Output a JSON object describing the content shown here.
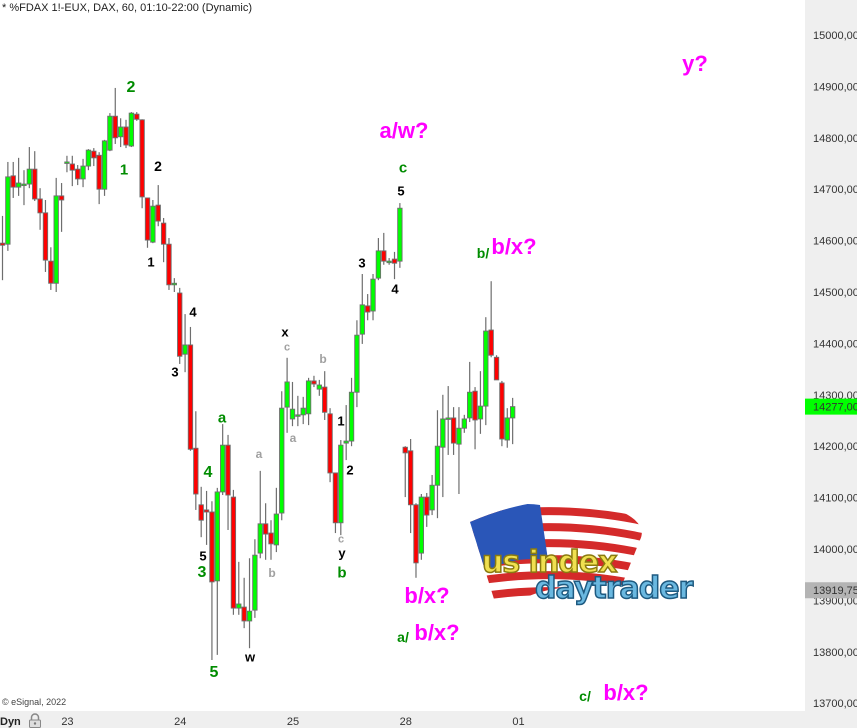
{
  "header": {
    "title": "* %FDAX 1!-EUX, DAX, 60, 01:10-22:00 (Dynamic)"
  },
  "footer": {
    "copyright": "© eSignal, 2022",
    "scale_mode": "Dyn",
    "lock_icon": "lock-icon"
  },
  "logo": {
    "text_line1": "us index",
    "text_line2": "daytrader"
  },
  "colors": {
    "up": "#00ff00",
    "down": "#ff0000",
    "outline": "#6e6e6e",
    "wave_green": "#008c00",
    "wave_black": "#000000",
    "wave_gray": "#a0a0a0",
    "scenario": "#ff00ff",
    "last_price_bg": "#00ff00",
    "marker_bg": "#b4b4b4"
  },
  "chart_data": {
    "type": "candlestick",
    "title": "* %FDAX 1!-EUX, DAX, 60, 01:10-22:00 (Dynamic)",
    "interval": "60",
    "ylim": [
      13680,
      15068
    ],
    "yticks": [
      "15000,00",
      "14900,00",
      "14800,00",
      "14700,00",
      "14600,00",
      "14500,00",
      "14400,00",
      "14300,00",
      "14200,00",
      "14100,00",
      "14000,00",
      "13900,00",
      "13800,00",
      "13700,00"
    ],
    "ytick_values": [
      15000,
      14900,
      14800,
      14700,
      14600,
      14500,
      14400,
      14300,
      14200,
      14100,
      14000,
      13900,
      13800,
      13700
    ],
    "xticks": [
      {
        "label": "23",
        "bar": 12
      },
      {
        "label": "24",
        "bar": 33
      },
      {
        "label": "25",
        "bar": 54
      },
      {
        "label": "28",
        "bar": 75
      },
      {
        "label": "01",
        "bar": 96
      }
    ],
    "last_price": {
      "value": 14277,
      "label": "14277,00"
    },
    "marker_price": {
      "value": 13919.75,
      "label": "13919,75"
    },
    "ohlc": [
      [
        14595,
        14648,
        14523,
        14591
      ],
      [
        14593,
        14753,
        14580,
        14724
      ],
      [
        14726,
        14753,
        14683,
        14704
      ],
      [
        14704,
        14761,
        14687,
        14712
      ],
      [
        14710,
        14737,
        14669,
        14710
      ],
      [
        14710,
        14782,
        14702,
        14739
      ],
      [
        14739,
        14774,
        14677,
        14681
      ],
      [
        14681,
        14702,
        14621,
        14654
      ],
      [
        14654,
        14679,
        14539,
        14562
      ],
      [
        14560,
        14587,
        14504,
        14517
      ],
      [
        14517,
        14722,
        14500,
        14687
      ],
      [
        14687,
        14712,
        14617,
        14679
      ],
      [
        14753,
        14765,
        14733,
        14753
      ],
      [
        14749,
        14765,
        14706,
        14737
      ],
      [
        14739,
        14747,
        14708,
        14720
      ],
      [
        14720,
        14759,
        14704,
        14745
      ],
      [
        14745,
        14778,
        14737,
        14776
      ],
      [
        14774,
        14780,
        14745,
        14761
      ],
      [
        14766,
        14772,
        14671,
        14700
      ],
      [
        14700,
        14796,
        14687,
        14794
      ],
      [
        14776,
        14848,
        14774,
        14842
      ],
      [
        14842,
        14897,
        14788,
        14800
      ],
      [
        14802,
        14838,
        14782,
        14821
      ],
      [
        14821,
        14835,
        14780,
        14786
      ],
      [
        14784,
        14850,
        14782,
        14848
      ],
      [
        14846,
        14850,
        14833,
        14836
      ],
      [
        14835,
        14836,
        14663,
        14685
      ],
      [
        14683,
        14683,
        14586,
        14601
      ],
      [
        14597,
        14679,
        14595,
        14667
      ],
      [
        14669,
        14708,
        14628,
        14638
      ],
      [
        14634,
        14644,
        14558,
        14593
      ],
      [
        14593,
        14605,
        14504,
        14514
      ],
      [
        14514,
        14527,
        14500,
        14517
      ],
      [
        14498,
        14508,
        14360,
        14375
      ],
      [
        14379,
        14457,
        14344,
        14397
      ],
      [
        14397,
        14432,
        14191,
        14194
      ],
      [
        14196,
        14268,
        14076,
        14107
      ],
      [
        14086,
        14121,
        14023,
        14056
      ],
      [
        14076,
        14113,
        14008,
        14072
      ],
      [
        14072,
        14093,
        13784,
        13936
      ],
      [
        13938,
        14119,
        13794,
        14111
      ],
      [
        14111,
        14243,
        14105,
        14202
      ],
      [
        14202,
        14222,
        14037,
        14105
      ],
      [
        14101,
        14115,
        13872,
        13885
      ],
      [
        13885,
        13975,
        13872,
        13893
      ],
      [
        13887,
        13944,
        13846,
        13860
      ],
      [
        13860,
        13982,
        13807,
        13879
      ],
      [
        13881,
        14019,
        13866,
        13988
      ],
      [
        13992,
        14152,
        13982,
        14049
      ],
      [
        14049,
        14089,
        13979,
        14029
      ],
      [
        14031,
        14056,
        13979,
        14010
      ],
      [
        14008,
        14119,
        13994,
        14068
      ],
      [
        14070,
        14307,
        14056,
        14274
      ],
      [
        14276,
        14372,
        14226,
        14325
      ],
      [
        14253,
        14325,
        14239,
        14272
      ],
      [
        14261,
        14298,
        14239,
        14261
      ],
      [
        14261,
        14296,
        14243,
        14274
      ],
      [
        14263,
        14333,
        14241,
        14327
      ],
      [
        14327,
        14337,
        14315,
        14321
      ],
      [
        14311,
        14329,
        14298,
        14319
      ],
      [
        14315,
        14346,
        14251,
        14266
      ],
      [
        14263,
        14274,
        14130,
        14148
      ],
      [
        14148,
        14148,
        14031,
        14051
      ],
      [
        14051,
        14212,
        14027,
        14202
      ],
      [
        14206,
        14280,
        14173,
        14210
      ],
      [
        14210,
        14333,
        14200,
        14305
      ],
      [
        14305,
        14445,
        14276,
        14416
      ],
      [
        14418,
        14535,
        14399,
        14475
      ],
      [
        14473,
        14496,
        14445,
        14461
      ],
      [
        14463,
        14535,
        14445,
        14525
      ],
      [
        14527,
        14605,
        14523,
        14580
      ],
      [
        14580,
        14615,
        14553,
        14560
      ],
      [
        14560,
        14566,
        14553,
        14560
      ],
      [
        14564,
        14578,
        14525,
        14556
      ],
      [
        14560,
        14673,
        14547,
        14663
      ],
      [
        14198,
        14200,
        14101,
        14187
      ],
      [
        14191,
        14214,
        14031,
        14086
      ],
      [
        14086,
        14089,
        13944,
        13973
      ],
      [
        13992,
        14107,
        13979,
        14101
      ],
      [
        14101,
        14109,
        14043,
        14066
      ],
      [
        14076,
        14144,
        14066,
        14124
      ],
      [
        14124,
        14270,
        14060,
        14200
      ],
      [
        14198,
        14300,
        14101,
        14253
      ],
      [
        14255,
        14317,
        14183,
        14255
      ],
      [
        14255,
        14276,
        14183,
        14206
      ],
      [
        14204,
        14276,
        14107,
        14235
      ],
      [
        14235,
        14261,
        14226,
        14253
      ],
      [
        14255,
        14364,
        14247,
        14305
      ],
      [
        14307,
        14315,
        14194,
        14251
      ],
      [
        14253,
        14346,
        14224,
        14278
      ],
      [
        14278,
        14451,
        14241,
        14424
      ],
      [
        14426,
        14521,
        14373,
        14377
      ],
      [
        14373,
        14377,
        14329,
        14329
      ],
      [
        14323,
        14327,
        14200,
        14214
      ],
      [
        14212,
        14274,
        14197,
        14255
      ],
      [
        14255,
        14294,
        14204,
        14277
      ]
    ],
    "annotations": [
      {
        "text": "2",
        "style": "green"
      },
      {
        "text": "1",
        "style": "green"
      },
      {
        "text": "2",
        "style": "black"
      },
      {
        "text": "1",
        "style": "black"
      },
      {
        "text": "4",
        "style": "black"
      },
      {
        "text": "3",
        "style": "black"
      },
      {
        "text": "a",
        "style": "green"
      },
      {
        "text": "4",
        "style": "green"
      },
      {
        "text": "5",
        "style": "black"
      },
      {
        "text": "3",
        "style": "green"
      },
      {
        "text": "5",
        "style": "green"
      },
      {
        "text": "w",
        "style": "black"
      },
      {
        "text": "a",
        "style": "gray"
      },
      {
        "text": "b",
        "style": "gray"
      },
      {
        "text": "x",
        "style": "black"
      },
      {
        "text": "c",
        "style": "gray"
      },
      {
        "text": "a",
        "style": "gray"
      },
      {
        "text": "b",
        "style": "gray"
      },
      {
        "text": "1",
        "style": "black"
      },
      {
        "text": "2",
        "style": "black"
      },
      {
        "text": "c",
        "style": "gray"
      },
      {
        "text": "y",
        "style": "black"
      },
      {
        "text": "b",
        "style": "green"
      },
      {
        "text": "3",
        "style": "black"
      },
      {
        "text": "4",
        "style": "black"
      },
      {
        "text": "5",
        "style": "black"
      },
      {
        "text": "c",
        "style": "green"
      },
      {
        "text": "a/w?",
        "style": "scenario"
      },
      {
        "text": "y?",
        "style": "scenario"
      },
      {
        "text": "b/",
        "style": "green"
      },
      {
        "text": "b/x?",
        "style": "scenario"
      },
      {
        "text": "b/x?",
        "style": "scenario"
      },
      {
        "text": "a/",
        "style": "green"
      },
      {
        "text": "b/x?",
        "style": "scenario"
      },
      {
        "text": "c/",
        "style": "green"
      },
      {
        "text": "b/x?",
        "style": "scenario"
      }
    ]
  }
}
